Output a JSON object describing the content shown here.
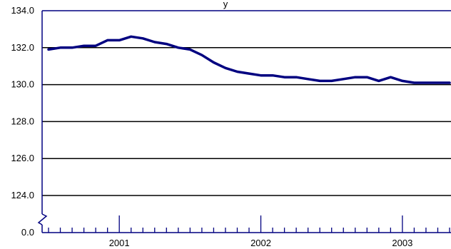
{
  "chart_data": {
    "type": "line",
    "title_fragment": "y",
    "xlabel": "",
    "ylabel": "",
    "ylim": [
      124.0,
      134.0
    ],
    "y_ticks": [
      "134.0",
      "132.0",
      "130.0",
      "128.0",
      "126.0",
      "124.0"
    ],
    "y_break_value": "0.0",
    "x_tick_labels": [
      "2001",
      "2002",
      "2003"
    ],
    "x_range": [
      "2000-07",
      "2003-05"
    ],
    "grid": "horizontal",
    "line_color": "#000080",
    "axis_color": "#000080",
    "series": [
      {
        "x": [
          "2000-07",
          "2000-08",
          "2000-09",
          "2000-10",
          "2000-11",
          "2000-12",
          "2001-01",
          "2001-02",
          "2001-03",
          "2001-04",
          "2001-05",
          "2001-06",
          "2001-07",
          "2001-08",
          "2001-09",
          "2001-10",
          "2001-11",
          "2001-12",
          "2002-01",
          "2002-02",
          "2002-03",
          "2002-04",
          "2002-05",
          "2002-06",
          "2002-07",
          "2002-08",
          "2002-09",
          "2002-10",
          "2002-11",
          "2002-12",
          "2003-01",
          "2003-02",
          "2003-03",
          "2003-04",
          "2003-05"
        ],
        "values": [
          131.9,
          132.0,
          132.0,
          132.1,
          132.1,
          132.4,
          132.4,
          132.6,
          132.5,
          132.3,
          132.2,
          132.0,
          131.9,
          131.6,
          131.2,
          130.9,
          130.7,
          130.6,
          130.5,
          130.5,
          130.4,
          130.4,
          130.3,
          130.2,
          130.2,
          130.3,
          130.4,
          130.4,
          130.2,
          130.4,
          130.2,
          130.1,
          130.1,
          130.1,
          130.1
        ]
      }
    ]
  }
}
